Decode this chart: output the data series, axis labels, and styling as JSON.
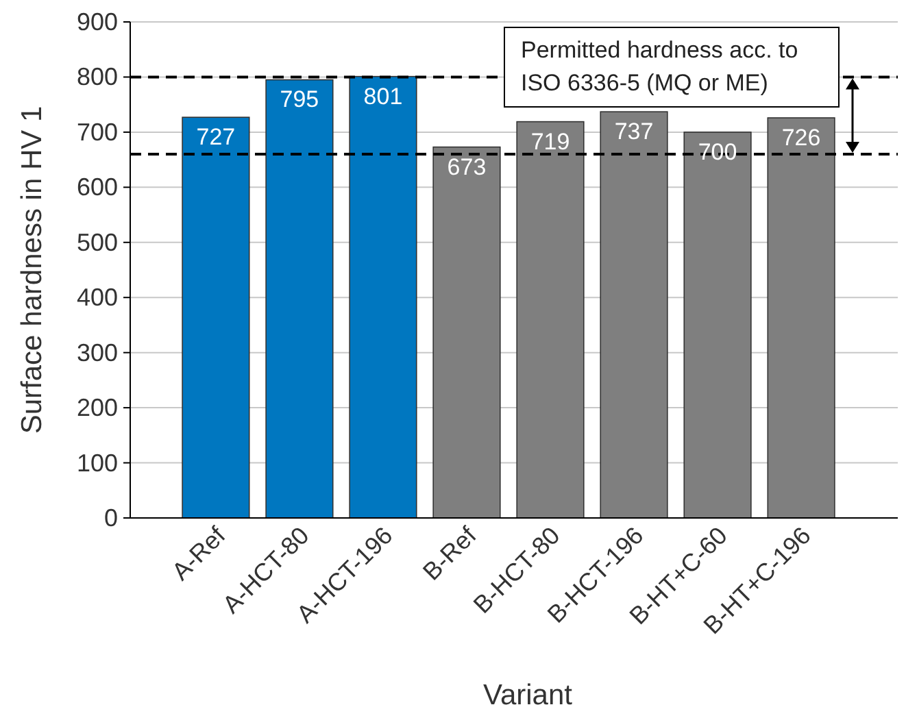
{
  "chart_data": {
    "type": "bar",
    "xlabel": "Variant",
    "ylabel": "Surface hardness in HV 1",
    "categories": [
      "A-Ref",
      "A-HCT-80",
      "A-HCT-196",
      "B-Ref",
      "B-HCT-80",
      "B-HCT-196",
      "B-HT+C-60",
      "B-HT+C-196"
    ],
    "values": [
      727,
      795,
      801,
      673,
      719,
      737,
      700,
      726
    ],
    "colors": [
      "#0077c0",
      "#0077c0",
      "#0077c0",
      "#7f7f7f",
      "#7f7f7f",
      "#7f7f7f",
      "#7f7f7f",
      "#7f7f7f"
    ],
    "data_labels": true,
    "ylim": [
      0,
      900
    ],
    "yticks": [
      0,
      100,
      200,
      300,
      400,
      500,
      600,
      700,
      800,
      900
    ],
    "grid": "y",
    "ref_lines": [
      {
        "axis": "y",
        "value": 800,
        "line_style": "dashed",
        "color": "#000000"
      },
      {
        "axis": "y",
        "value": 660,
        "line_style": "dashed",
        "color": "#000000"
      }
    ],
    "annotations": [
      "Permitted hardness acc. to\nISO 6336-5 (MQ or ME)"
    ]
  }
}
